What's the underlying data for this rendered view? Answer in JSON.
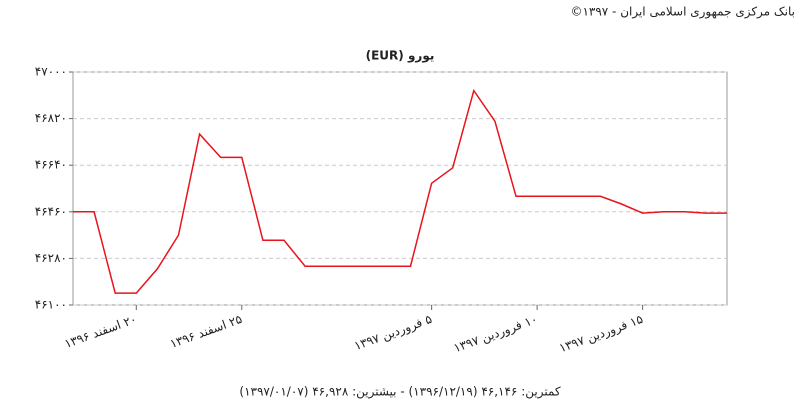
{
  "chart_data": {
    "type": "line",
    "source": "بانک مرکزی جمهوری اسلامی ایران - ۱۳۹۷©",
    "title": "یورو (EUR)",
    "categories": [
      null,
      null,
      null,
      "۲۰ اسفند ۱۳۹۶",
      null,
      null,
      null,
      null,
      "۲۵ اسفند ۱۳۹۶",
      null,
      null,
      null,
      null,
      null,
      null,
      null,
      null,
      "۵ فروردین ۱۳۹۷",
      null,
      null,
      null,
      null,
      "۱۰ فروردین ۱۳۹۷",
      null,
      null,
      null,
      null,
      "۱۵ فروردین ۱۳۹۷",
      null,
      null,
      null,
      null
    ],
    "values": [
      46460,
      46460,
      46146,
      46146,
      46240,
      46370,
      46760,
      46670,
      46670,
      46350,
      46350,
      46250,
      46250,
      46250,
      46250,
      46250,
      46250,
      46570,
      46630,
      46928,
      46810,
      46520,
      46520,
      46520,
      46520,
      46520,
      46490,
      46455,
      46460,
      46460,
      46455,
      46455
    ],
    "color": "#e8141c",
    "ylim": [
      46100,
      47000
    ],
    "yticks": [
      {
        "value": 46100,
        "label": "۴۶۱۰۰"
      },
      {
        "value": 46280,
        "label": "۴۶۲۸۰"
      },
      {
        "value": 46460,
        "label": "۴۶۴۶۰"
      },
      {
        "value": 46640,
        "label": "۴۶۶۴۰"
      },
      {
        "value": 46820,
        "label": "۴۶۸۲۰"
      },
      {
        "value": 47000,
        "label": "۴۷۰۰۰"
      }
    ],
    "grid": true,
    "footer": "کمترین: ۴۶,۱۴۶ (۱۳۹۶/۱۲/۱۹) - بیشترین: ۴۶,۹۲۸ (۱۳۹۷/۰۱/۰۷)"
  }
}
